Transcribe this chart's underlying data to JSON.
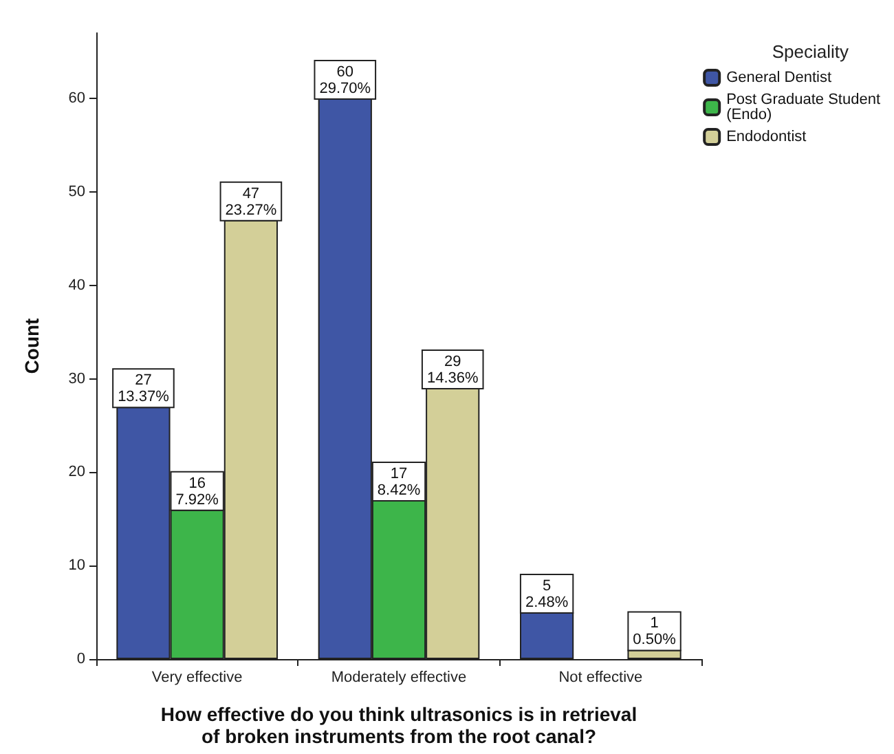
{
  "chart_data": {
    "type": "bar",
    "xlabel": "How effective do you think ultrasonics is in retrieval\nof broken instruments from the root canal?",
    "ylabel": "Count",
    "legend_title": "Speciality",
    "legend": "top right",
    "grid": false,
    "categories": [
      "Very effective",
      "Moderately effective",
      "Not effective"
    ],
    "ylim": [
      0,
      67
    ],
    "yticks": [
      0,
      10,
      20,
      30,
      40,
      50,
      60
    ],
    "series": [
      {
        "name": "General Dentist",
        "color": "#3f56a5",
        "values": [
          27,
          60,
          5
        ],
        "value_labels": [
          "27\n13.37%",
          "60\n29.70%",
          "5\n2.48%"
        ]
      },
      {
        "name": "Post Graduate Student\n(Endo)",
        "color": "#3db54a",
        "values": [
          16,
          17,
          null
        ],
        "value_labels": [
          "16\n7.92%",
          "17\n8.42%",
          null
        ]
      },
      {
        "name": "Endodontist",
        "color": "#d3cf98",
        "values": [
          47,
          29,
          1
        ],
        "value_labels": [
          "47\n23.27%",
          "29\n14.36%",
          "1\n0.50%"
        ]
      }
    ]
  }
}
